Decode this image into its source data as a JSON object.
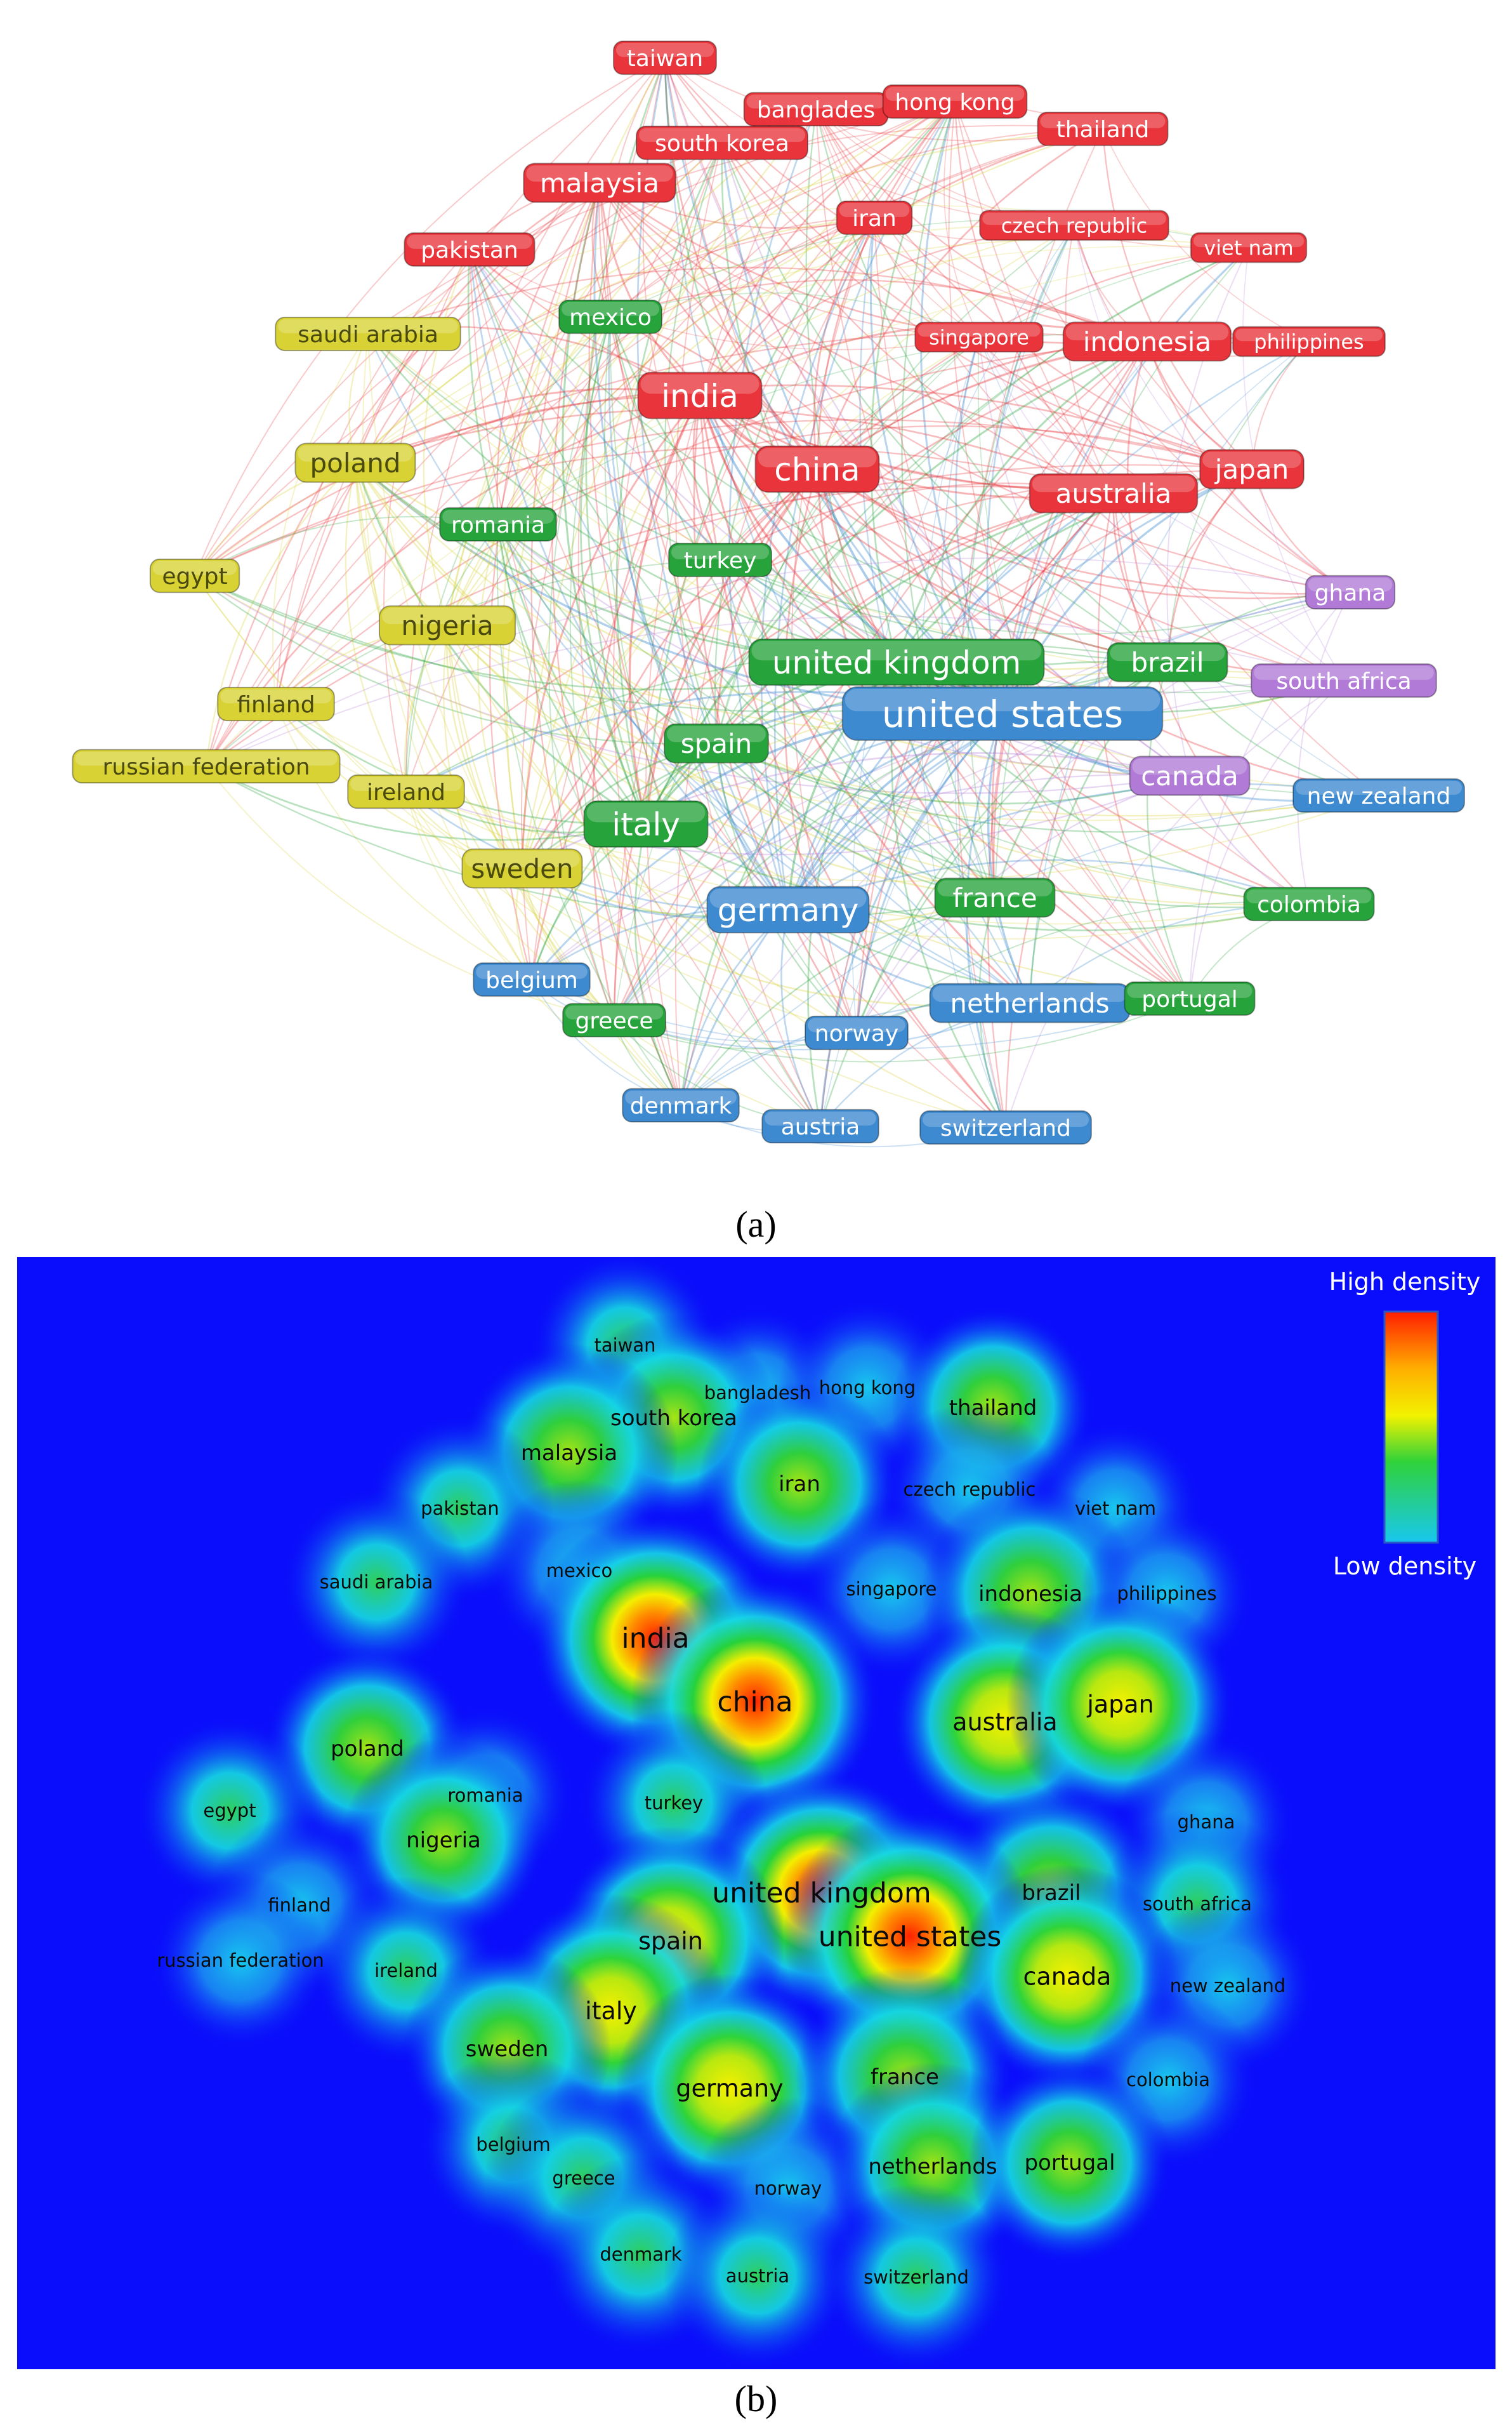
{
  "caption_a": "(a)",
  "caption_b": "(b)",
  "legend": {
    "high": "High density",
    "low": "Low density"
  },
  "cluster_colors": {
    "red": "#e8343a",
    "green": "#27a33b",
    "yellow": "#d8d234",
    "blue": "#3d8ad0",
    "purple": "#b07ad6"
  },
  "network": [
    {
      "label": "taiwan",
      "cluster": "red",
      "size": 2
    },
    {
      "label": "banglades",
      "cluster": "red",
      "size": 2
    },
    {
      "label": "hong kong",
      "cluster": "red",
      "size": 2
    },
    {
      "label": "thailand",
      "cluster": "red",
      "size": 2
    },
    {
      "label": "south korea",
      "cluster": "red",
      "size": 2
    },
    {
      "label": "malaysia",
      "cluster": "red",
      "size": 3
    },
    {
      "label": "iran",
      "cluster": "red",
      "size": 2
    },
    {
      "label": "czech republic",
      "cluster": "red",
      "size": 1
    },
    {
      "label": "viet nam",
      "cluster": "red",
      "size": 1
    },
    {
      "label": "pakistan",
      "cluster": "red",
      "size": 2
    },
    {
      "label": "singapore",
      "cluster": "red",
      "size": 1
    },
    {
      "label": "indonesia",
      "cluster": "red",
      "size": 3
    },
    {
      "label": "philippines",
      "cluster": "red",
      "size": 1
    },
    {
      "label": "india",
      "cluster": "red",
      "size": 4
    },
    {
      "label": "china",
      "cluster": "red",
      "size": 4
    },
    {
      "label": "australia",
      "cluster": "red",
      "size": 3
    },
    {
      "label": "japan",
      "cluster": "red",
      "size": 3
    },
    {
      "label": "saudi arabia",
      "cluster": "yellow",
      "size": 2
    },
    {
      "label": "mexico",
      "cluster": "green",
      "size": 2
    },
    {
      "label": "poland",
      "cluster": "yellow",
      "size": 3
    },
    {
      "label": "romania",
      "cluster": "green",
      "size": 2
    },
    {
      "label": "turkey",
      "cluster": "green",
      "size": 2
    },
    {
      "label": "egypt",
      "cluster": "yellow",
      "size": 2
    },
    {
      "label": "nigeria",
      "cluster": "yellow",
      "size": 3
    },
    {
      "label": "ghana",
      "cluster": "purple",
      "size": 2
    },
    {
      "label": "united kingdom",
      "cluster": "green",
      "size": 4
    },
    {
      "label": "brazil",
      "cluster": "green",
      "size": 3
    },
    {
      "label": "south africa",
      "cluster": "purple",
      "size": 2
    },
    {
      "label": "finland",
      "cluster": "yellow",
      "size": 2
    },
    {
      "label": "united states",
      "cluster": "blue",
      "size": 5
    },
    {
      "label": "spain",
      "cluster": "green",
      "size": 3
    },
    {
      "label": "russian federation",
      "cluster": "yellow",
      "size": 2
    },
    {
      "label": "ireland",
      "cluster": "yellow",
      "size": 2
    },
    {
      "label": "canada",
      "cluster": "purple",
      "size": 3
    },
    {
      "label": "new zealand",
      "cluster": "blue",
      "size": 2
    },
    {
      "label": "italy",
      "cluster": "green",
      "size": 4
    },
    {
      "label": "sweden",
      "cluster": "yellow",
      "size": 3
    },
    {
      "label": "france",
      "cluster": "green",
      "size": 3
    },
    {
      "label": "colombia",
      "cluster": "green",
      "size": 2
    },
    {
      "label": "germany",
      "cluster": "blue",
      "size": 4
    },
    {
      "label": "belgium",
      "cluster": "blue",
      "size": 2
    },
    {
      "label": "greece",
      "cluster": "green",
      "size": 2
    },
    {
      "label": "netherlands",
      "cluster": "blue",
      "size": 3
    },
    {
      "label": "portugal",
      "cluster": "green",
      "size": 2
    },
    {
      "label": "norway",
      "cluster": "blue",
      "size": 2
    },
    {
      "label": "denmark",
      "cluster": "blue",
      "size": 2
    },
    {
      "label": "austria",
      "cluster": "blue",
      "size": 2
    },
    {
      "label": "switzerland",
      "cluster": "blue",
      "size": 2
    }
  ],
  "density": [
    {
      "label": "taiwan",
      "level": 0.35
    },
    {
      "label": "bangladesh",
      "level": 0.2
    },
    {
      "label": "hong kong",
      "level": 0.25
    },
    {
      "label": "thailand",
      "level": 0.5
    },
    {
      "label": "south korea",
      "level": 0.55
    },
    {
      "label": "malaysia",
      "level": 0.65
    },
    {
      "label": "iran",
      "level": 0.5
    },
    {
      "label": "czech republic",
      "level": 0.2
    },
    {
      "label": "viet nam",
      "level": 0.2
    },
    {
      "label": "pakistan",
      "level": 0.35
    },
    {
      "label": "saudi arabia",
      "level": 0.35
    },
    {
      "label": "mexico",
      "level": 0.3
    },
    {
      "label": "singapore",
      "level": 0.25
    },
    {
      "label": "indonesia",
      "level": 0.65
    },
    {
      "label": "philippines",
      "level": 0.2
    },
    {
      "label": "india",
      "level": 0.95
    },
    {
      "label": "china",
      "level": 0.95
    },
    {
      "label": "poland",
      "level": 0.55
    },
    {
      "label": "australia",
      "level": 0.75
    },
    {
      "label": "japan",
      "level": 0.75
    },
    {
      "label": "romania",
      "level": 0.25
    },
    {
      "label": "egypt",
      "level": 0.35
    },
    {
      "label": "turkey",
      "level": 0.35
    },
    {
      "label": "ghana",
      "level": 0.25
    },
    {
      "label": "nigeria",
      "level": 0.5
    },
    {
      "label": "united kingdom",
      "level": 0.9
    },
    {
      "label": "brazil",
      "level": 0.65
    },
    {
      "label": "finland",
      "level": 0.3
    },
    {
      "label": "united states",
      "level": 1.0
    },
    {
      "label": "south africa",
      "level": 0.4
    },
    {
      "label": "russian federation",
      "level": 0.25
    },
    {
      "label": "spain",
      "level": 0.75
    },
    {
      "label": "ireland",
      "level": 0.35
    },
    {
      "label": "canada",
      "level": 0.7
    },
    {
      "label": "new zealand",
      "level": 0.25
    },
    {
      "label": "italy",
      "level": 0.8
    },
    {
      "label": "sweden",
      "level": 0.55
    },
    {
      "label": "germany",
      "level": 0.75
    },
    {
      "label": "france",
      "level": 0.65
    },
    {
      "label": "colombia",
      "level": 0.25
    },
    {
      "label": "belgium",
      "level": 0.35
    },
    {
      "label": "greece",
      "level": 0.45
    },
    {
      "label": "norway",
      "level": 0.3
    },
    {
      "label": "netherlands",
      "level": 0.55
    },
    {
      "label": "portugal",
      "level": 0.5
    },
    {
      "label": "denmark",
      "level": 0.45
    },
    {
      "label": "austria",
      "level": 0.35
    },
    {
      "label": "switzerland",
      "level": 0.35
    }
  ]
}
